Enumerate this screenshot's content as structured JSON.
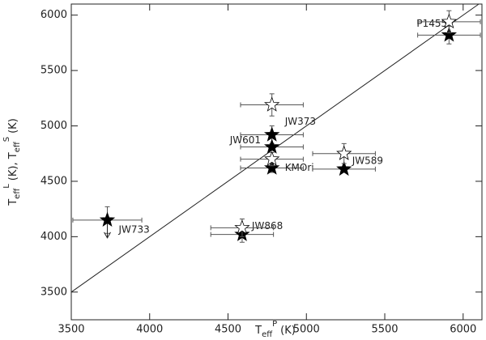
{
  "chart_data": {
    "type": "scatter",
    "xlabel": {
      "base": "T",
      "sub": "eff",
      "sup": "P",
      "rest": "(K)"
    },
    "ylabel": [
      {
        "base": "T",
        "sub": "eff",
        "sup": "L",
        "rest": "(K),"
      },
      {
        "base": "T",
        "sub": "eff",
        "sup": "S",
        "rest": "(K)"
      }
    ],
    "xlim": [
      3500,
      6120
    ],
    "ylim": [
      3250,
      6100
    ],
    "xticks": [
      3500,
      4000,
      4500,
      5000,
      5500,
      6000
    ],
    "yticks": [
      3500,
      4000,
      4500,
      5000,
      5500,
      6000
    ],
    "identity_line": true,
    "series": [
      {
        "marker": "filled",
        "color": "#000000",
        "x": [
          3730,
          4590,
          4780,
          4780,
          4780,
          5240,
          5910
        ],
        "y": [
          4150,
          4020,
          4920,
          4810,
          4620,
          4610,
          5820
        ],
        "xerr": [
          220,
          200,
          200,
          200,
          200,
          200,
          200
        ],
        "yerr": [
          120,
          70,
          80,
          null,
          40,
          null,
          80
        ],
        "upper_limit": [
          true,
          false,
          false,
          false,
          false,
          false,
          false
        ],
        "labels": [
          "JW733",
          "JW868",
          "JW373",
          "JW601",
          "KMOri",
          "JW589",
          "P1455"
        ]
      },
      {
        "marker": "open",
        "color": "#000000",
        "x": [
          4590,
          4780,
          4780,
          5240,
          5910
        ],
        "y": [
          4080,
          5190,
          4700,
          4750,
          5940
        ],
        "xerr": [
          200,
          200,
          200,
          200,
          200
        ],
        "yerr": [
          80,
          100,
          60,
          90,
          100
        ]
      }
    ]
  }
}
